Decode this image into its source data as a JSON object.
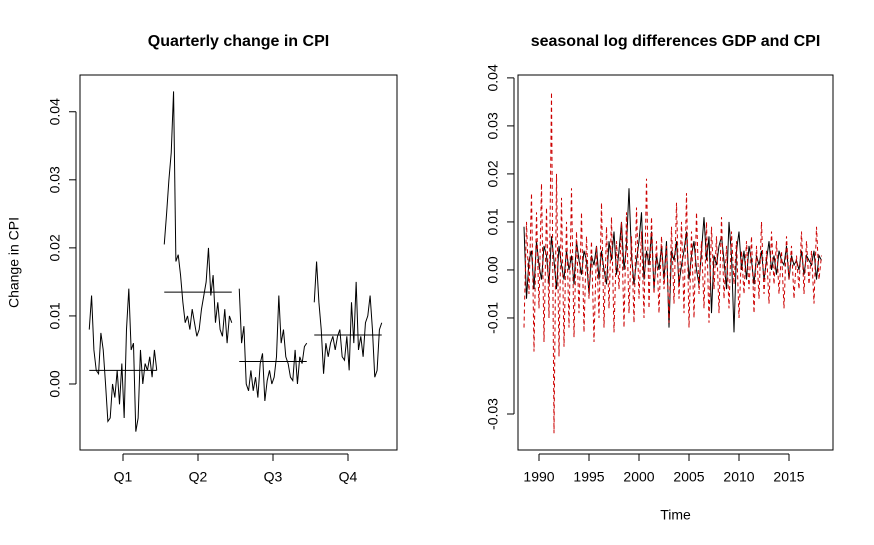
{
  "chart_data": [
    {
      "type": "monthplot",
      "title": "Quarterly change in CPI",
      "ylabel": "Change in CPI",
      "color": "#000000",
      "categories": [
        "Q1",
        "Q2",
        "Q3",
        "Q4"
      ],
      "subseries": [
        [
          0.008,
          0.013,
          0.005,
          0.002,
          0.0015,
          0.0075,
          0.005,
          0.0,
          -0.0055,
          -0.005,
          0.0,
          -0.002,
          0.002,
          -0.003,
          0.003,
          -0.005,
          0.008,
          0.014,
          0.005,
          0.006,
          -0.007,
          -0.005,
          0.005,
          0.0,
          0.003,
          0.002,
          0.004,
          0.001,
          0.005,
          0.002
        ],
        [
          0.0205,
          0.025,
          0.03,
          0.034,
          0.043,
          0.018,
          0.019,
          0.016,
          0.012,
          0.009,
          0.01,
          0.008,
          0.011,
          0.009,
          0.007,
          0.008,
          0.011,
          0.013,
          0.015,
          0.02,
          0.013,
          0.016,
          0.009,
          0.012,
          0.008,
          0.007,
          0.011,
          0.006,
          0.01,
          0.009
        ],
        [
          0.014,
          0.006,
          0.0085,
          0.0,
          -0.001,
          0.002,
          -0.001,
          0.001,
          -0.002,
          0.003,
          0.0045,
          -0.0025,
          0.0005,
          0.002,
          0.0,
          0.001,
          0.004,
          0.013,
          0.006,
          0.008,
          0.004,
          0.003,
          0.001,
          0.0005,
          0.005,
          0.0,
          0.004,
          0.003,
          0.0055,
          0.006
        ],
        [
          0.012,
          0.018,
          0.012,
          0.008,
          0.0015,
          0.006,
          0.004,
          0.006,
          0.007,
          0.005,
          0.007,
          0.008,
          0.004,
          0.0035,
          0.007,
          0.002,
          0.012,
          0.006,
          0.015,
          0.005,
          0.007,
          0.004,
          0.009,
          0.01,
          0.013,
          0.008,
          0.001,
          0.002,
          0.008,
          0.009
        ]
      ],
      "means": [
        0.002,
        0.0135,
        0.0033,
        0.0072
      ],
      "ylim": [
        -0.0097,
        0.0454
      ],
      "yticks": [
        {
          "value": 0,
          "label": "0.00"
        },
        0.01,
        0.02,
        0.03,
        0.04
      ]
    },
    {
      "type": "line",
      "title": "seasonal log differences GDP and CPI",
      "xlabel": "Time",
      "start": 1988.5,
      "frequency": 4,
      "xlim": [
        1987.9,
        2019.4
      ],
      "xticks": [
        1990,
        1995,
        2000,
        2005,
        2010,
        2015
      ],
      "ylim": [
        -0.0375,
        0.0406
      ],
      "yticks": [
        -0.03,
        -0.01,
        {
          "value": 0,
          "label": "0.00"
        },
        0.01,
        0.02,
        0.03,
        0.04
      ],
      "series": [
        {
          "color": "#000000",
          "dashed": false,
          "values": [
            0.009,
            -0.006,
            0.002,
            0.004,
            -0.004,
            0.006,
            0.001,
            -0.002,
            0.005,
            0.003,
            -0.003,
            0.007,
            0.002,
            -0.004,
            0.005,
            0.001,
            -0.002,
            0.004,
            0.0,
            0.003,
            -0.003,
            0.006,
            0.002,
            -0.001,
            0.004,
            0.002,
            -0.005,
            0.003,
            0.001,
            0.005,
            -0.002,
            0.004,
            0.0,
            -0.003,
            0.006,
            0.002,
            0.008,
            -0.001,
            0.004,
            0.01,
            0.0,
            0.005,
            0.017,
            0.003,
            -0.003,
            0.002,
            0.006,
            0.012,
            -0.002,
            0.004,
            0.001,
            0.008,
            -0.004,
            0.003,
            0.0,
            0.005,
            -0.002,
            0.006,
            -0.012,
            0.004,
            0.002,
            0.006,
            -0.003,
            0.001,
            0.004,
            0.008,
            -0.002,
            0.003,
            0.006,
            0.0,
            -0.003,
            0.004,
            0.011,
            0.002,
            0.007,
            -0.009,
            0.003,
            0.001,
            0.005,
            0.007,
            0.002,
            -0.004,
            0.01,
            0.003,
            -0.013,
            0.004,
            0.008,
            0.0,
            0.004,
            -0.002,
            0.005,
            0.002,
            -0.003,
            0.003,
            0.001,
            0.004,
            -0.002,
            0.002,
            0.006,
            0.0,
            0.003,
            -0.001,
            0.004,
            0.002,
            0.001,
            0.005,
            -0.002,
            0.003,
            0.001,
            0.002,
            0.0,
            0.004,
            -0.001,
            0.003,
            0.002,
            0.001,
            0.004,
            -0.002,
            0.003,
            0.002
          ]
        },
        {
          "color": "#cc0000",
          "dashed": true,
          "values": [
            -0.012,
            0.01,
            -0.005,
            0.016,
            -0.017,
            0.012,
            -0.008,
            0.018,
            -0.015,
            0.013,
            -0.01,
            0.037,
            -0.034,
            0.02,
            -0.018,
            0.015,
            -0.016,
            0.01,
            -0.012,
            0.017,
            -0.014,
            0.008,
            -0.009,
            0.012,
            -0.013,
            0.007,
            -0.006,
            0.006,
            -0.015,
            0.005,
            -0.01,
            0.014,
            -0.012,
            0.009,
            -0.008,
            0.011,
            -0.013,
            0.006,
            -0.004,
            0.01,
            -0.012,
            0.012,
            -0.009,
            0.007,
            -0.011,
            0.013,
            -0.006,
            0.008,
            -0.01,
            0.019,
            -0.008,
            0.011,
            -0.005,
            0.006,
            -0.009,
            0.007,
            -0.004,
            0.005,
            -0.011,
            0.009,
            -0.007,
            0.014,
            -0.006,
            0.01,
            -0.009,
            0.016,
            -0.012,
            0.008,
            -0.01,
            0.012,
            -0.005,
            0.006,
            -0.008,
            0.01,
            -0.011,
            0.009,
            -0.004,
            0.007,
            -0.009,
            0.011,
            -0.006,
            0.005,
            -0.008,
            0.008,
            -0.003,
            0.006,
            -0.01,
            0.004,
            -0.005,
            0.006,
            -0.004,
            0.007,
            -0.009,
            0.005,
            -0.006,
            0.01,
            -0.005,
            0.004,
            -0.007,
            0.008,
            -0.003,
            0.006,
            -0.005,
            0.004,
            -0.008,
            0.007,
            -0.002,
            0.005,
            -0.006,
            0.003,
            -0.004,
            0.008,
            -0.005,
            0.006,
            -0.003,
            0.004,
            -0.007,
            0.009,
            -0.002,
            0.003
          ]
        }
      ]
    }
  ]
}
